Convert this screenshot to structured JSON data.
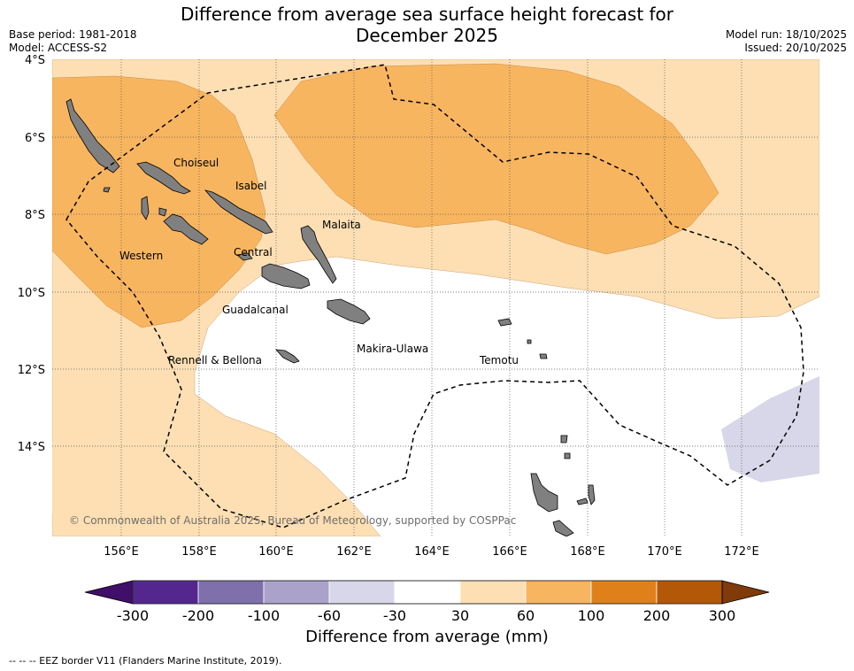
{
  "title_line1": "Difference from average sea surface height forecast for",
  "title_line2": "December 2025",
  "base_period": "Base period: 1981-2018",
  "model": "Model: ACCESS-S2",
  "model_run": "Model run: 18/10/2025",
  "issued": "Issued: 20/10/2025",
  "latitude_labels": [
    "4°S",
    "6°S",
    "8°S",
    "10°S",
    "12°S",
    "14°S"
  ],
  "longitude_labels": [
    "156°E",
    "158°E",
    "160°E",
    "162°E",
    "164°E",
    "166°E",
    "168°E",
    "170°E",
    "172°E"
  ],
  "regions": [
    "Choiseul",
    "Isabel",
    "Malaita",
    "Western",
    "Central",
    "Guadalcanal",
    "Rennell & Bellona",
    "Makira-Ulawa",
    "Temotu"
  ],
  "copyright": "© Commonwealth of Australia 2025, Bureau of Meteorology, supported by COSPPac",
  "colorbar": {
    "ticks": [
      "-300",
      "-200",
      "-100",
      "-60",
      "-30",
      "30",
      "60",
      "100",
      "200",
      "300"
    ],
    "colors": [
      "#3f0f69",
      "#54278f",
      "#7f6faa",
      "#aaa2cb",
      "#d7d7e9",
      "#ffffff",
      "#fddfb3",
      "#f8b560",
      "#e0801a",
      "#b35806",
      "#7f3b08"
    ],
    "label": "Difference from average (mm)"
  },
  "footnote": "--  --  -- EEZ border V11 (Flanders Marine Institute, 2019)."
}
